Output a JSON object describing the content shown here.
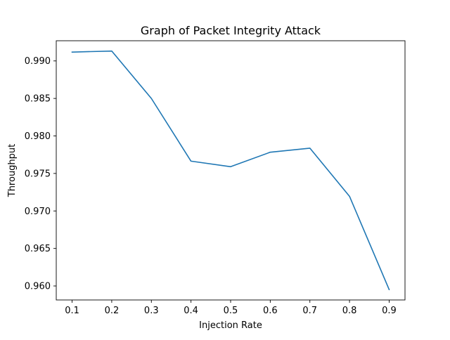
{
  "chart_data": {
    "type": "line",
    "title": "Graph of Packet Integrity Attack",
    "xlabel": "Injection Rate",
    "ylabel": "Throughput",
    "x": [
      0.1,
      0.2,
      0.3,
      0.4,
      0.5,
      0.6,
      0.7,
      0.8,
      0.9
    ],
    "series": [
      {
        "values": [
          0.99118,
          0.99132,
          0.985,
          0.97664,
          0.9759,
          0.97783,
          0.97837,
          0.97195,
          0.95952
        ],
        "color": "#1f77b4"
      }
    ],
    "xticks": [
      "0.1",
      "0.2",
      "0.3",
      "0.4",
      "0.5",
      "0.6",
      "0.7",
      "0.8",
      "0.9"
    ],
    "yticks": [
      "0.960",
      "0.965",
      "0.970",
      "0.975",
      "0.980",
      "0.985",
      "0.990"
    ],
    "xlim": [
      0.06,
      0.94
    ],
    "ylim": [
      0.958132,
      0.992692
    ],
    "grid": false,
    "legend": "none"
  }
}
